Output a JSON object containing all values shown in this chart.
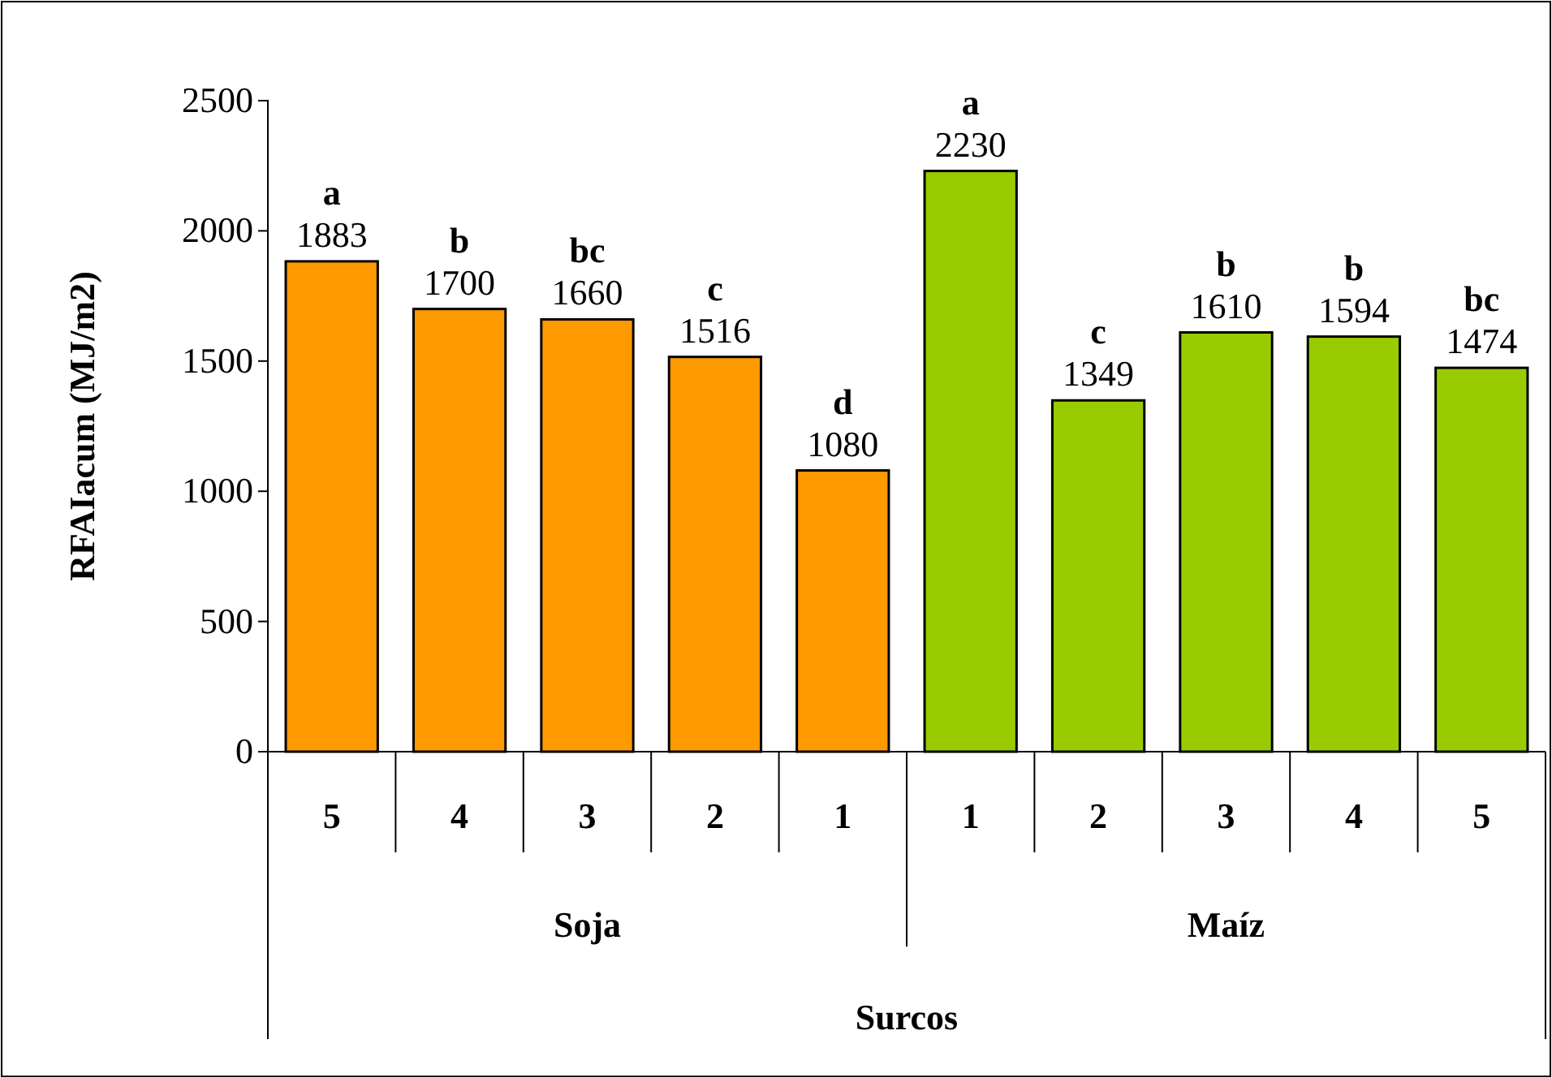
{
  "chart_data": {
    "type": "bar",
    "xlabel": "Surcos",
    "ylabel": "RFAIacum (MJ/m2)",
    "categories": [
      "5",
      "4",
      "3",
      "2",
      "1",
      "1",
      "2",
      "3",
      "4",
      "5"
    ],
    "values": [
      1883,
      1700,
      1660,
      1516,
      1080,
      2230,
      1349,
      1610,
      1594,
      1474
    ],
    "colors": [
      "#ff9900",
      "#ff9900",
      "#ff9900",
      "#ff9900",
      "#ff9900",
      "#99cc00",
      "#99cc00",
      "#99cc00",
      "#99cc00",
      "#99cc00"
    ],
    "ylim": [
      0,
      2500
    ],
    "yticks": [
      0,
      500,
      1000,
      1500,
      2000,
      2500
    ],
    "data_labels": true,
    "grid": false,
    "annotations": [
      "a",
      "b",
      "bc",
      "c",
      "d",
      "a",
      "c",
      "b",
      "b",
      "bc",
      "Soja",
      "Maíz"
    ]
  }
}
